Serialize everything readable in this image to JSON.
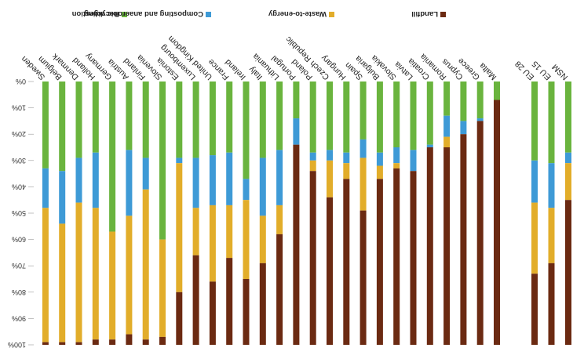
{
  "chart_data": {
    "type": "bar",
    "stacked": true,
    "orientation": "vertical",
    "rendered_rotation_deg": 180,
    "ylim": [
      0,
      100
    ],
    "y_ticks": [
      "0%",
      "10%",
      "20%",
      "30%",
      "40%",
      "50%",
      "60%",
      "70%",
      "80%",
      "90%",
      "100%"
    ],
    "legend_position": "top",
    "categories": [
      "EU 28",
      "EU 15",
      "NSM",
      "Sweden",
      "Belgium",
      "Denmark",
      "Holland",
      "Germany",
      "Austria",
      "Finland",
      "Slovenia",
      "Estonia",
      "Luxembourg",
      "United Kingdom",
      "France",
      "Ireland",
      "Italy",
      "Lithuania",
      "Portugal",
      "Poland",
      "Czech Republic",
      "Hungary",
      "Spain",
      "Bulgaria",
      "Slovakia",
      "Latvia",
      "Croatia",
      "Romania",
      "Cyprus",
      "Greece",
      "Malta"
    ],
    "series": [
      {
        "name": "Recycling",
        "color": "#6ab43e",
        "values": [
          30,
          31,
          27,
          33,
          34,
          29,
          27,
          57,
          26,
          29,
          60,
          29,
          29,
          28,
          27,
          37,
          29,
          26,
          14,
          27,
          26,
          27,
          22,
          27,
          25,
          26,
          24,
          13,
          15,
          14,
          7
        ]
      },
      {
        "name": "Composting and anaerobic digestion",
        "color": "#3e9ad6",
        "values": [
          16,
          17,
          4,
          15,
          20,
          17,
          21,
          0,
          25,
          12,
          0,
          2,
          19,
          19,
          20,
          8,
          22,
          21,
          10,
          3,
          4,
          4,
          7,
          5,
          6,
          8,
          1,
          8,
          5,
          1,
          0
        ]
      },
      {
        "name": "Waste-to-energy",
        "color": "#e2ad2a",
        "values": [
          27,
          21,
          14,
          51,
          45,
          53,
          50,
          41,
          45,
          57,
          37,
          49,
          18,
          29,
          20,
          30,
          18,
          11,
          0,
          4,
          14,
          6,
          20,
          5,
          2,
          0,
          0,
          4,
          0,
          0,
          0
        ]
      },
      {
        "name": "Landfill",
        "color": "#6b2a12",
        "values": [
          27,
          31,
          55,
          1,
          1,
          1,
          2,
          2,
          4,
          2,
          3,
          20,
          34,
          24,
          33,
          25,
          31,
          42,
          76,
          66,
          56,
          63,
          51,
          63,
          67,
          66,
          75,
          75,
          80,
          85,
          93
        ]
      }
    ]
  }
}
